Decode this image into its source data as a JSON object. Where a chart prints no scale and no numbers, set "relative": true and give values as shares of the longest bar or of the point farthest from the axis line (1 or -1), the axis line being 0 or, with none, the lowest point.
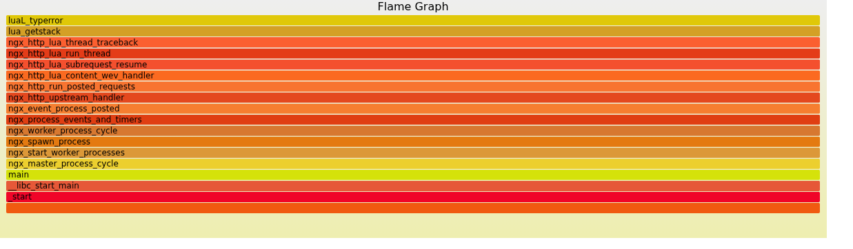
{
  "chart_data": {
    "type": "bar",
    "title": "Flame Graph",
    "orientation": "horizontal",
    "relative": true,
    "categories": [
      "luaL_typerror",
      "lua_getstack",
      "ngx_http_lua_thread_traceback",
      "ngx_http_lua_run_thread",
      "ngx_http_lua_subrequest_resume",
      "ngx_http_lua_content_wev_handler",
      "ngx_http_run_posted_requests",
      "ngx_http_upstream_handler",
      "ngx_event_process_posted",
      "ngx_process_events_and_timers",
      "ngx_worker_process_cycle",
      "ngx_spawn_process",
      "ngx_start_worker_processes",
      "ngx_master_process_cycle",
      "main",
      "__libc_start_main",
      "_start",
      null
    ],
    "values": [
      1,
      1,
      1,
      1,
      1,
      1,
      1,
      1,
      1,
      1,
      1,
      1,
      1,
      1,
      1,
      1,
      1,
      1
    ],
    "colors": [
      "#e0c808",
      "#d4a026",
      "#fb5f30",
      "#e43c18",
      "#f4502e",
      "#fb6a20",
      "#f87430",
      "#e4481e",
      "#f67e30",
      "#e03e12",
      "#d77830",
      "#e47a10",
      "#dc9838",
      "#eccf2e",
      "#d5e20a",
      "#e65838",
      "#f00528",
      "#f05a10"
    ]
  }
}
